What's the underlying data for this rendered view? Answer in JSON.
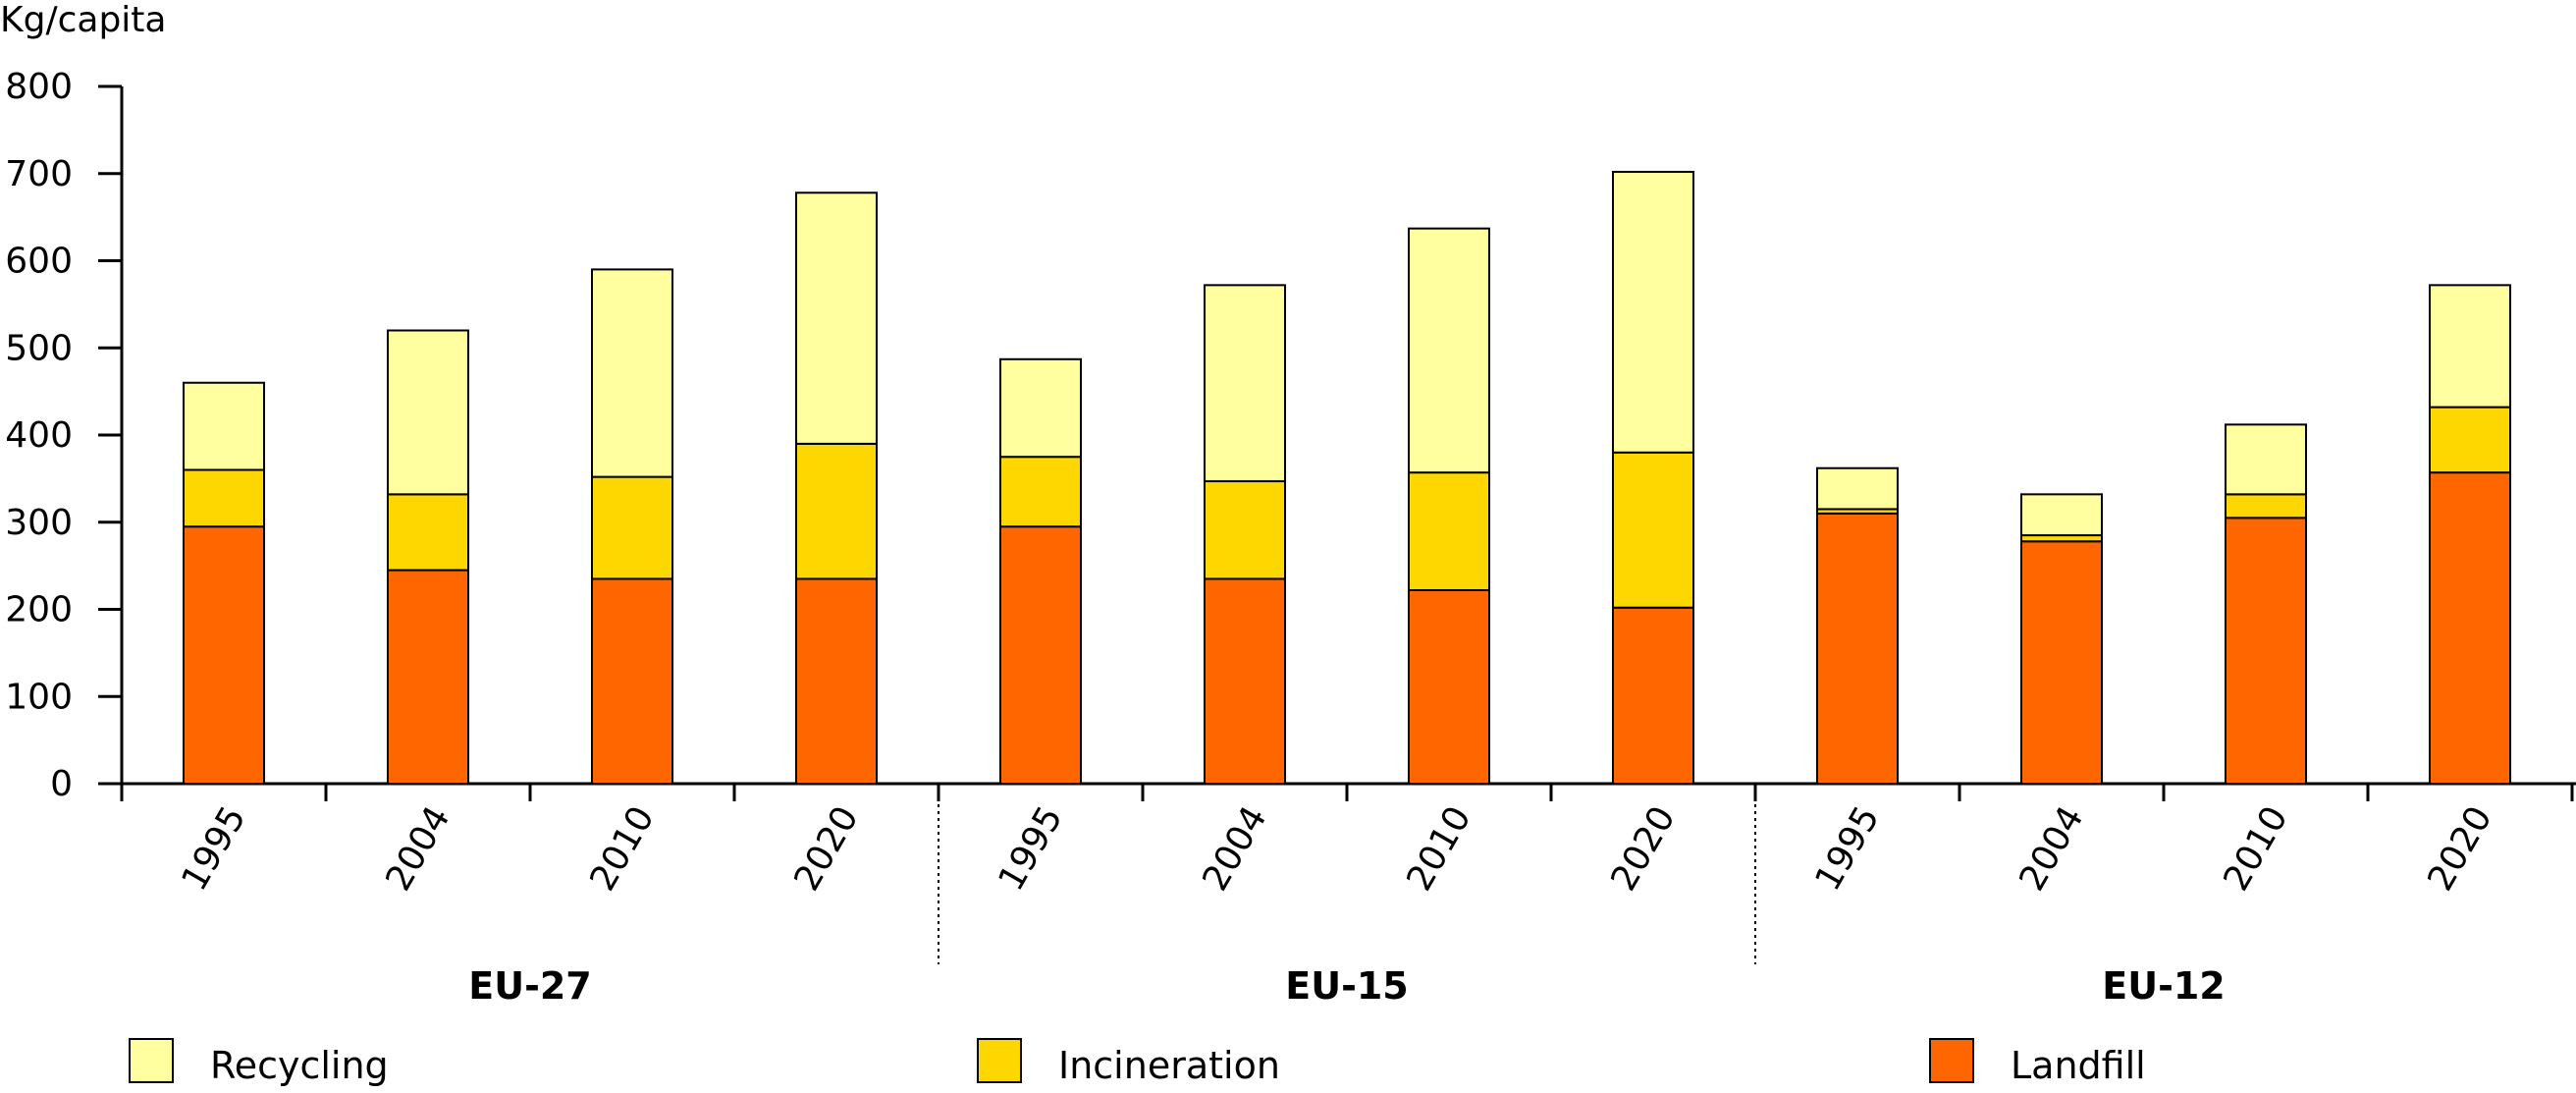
{
  "chart_data": {
    "type": "bar",
    "stacked": true,
    "ylabel": "Kg/capita",
    "ylim": [
      0,
      800
    ],
    "yticks": [
      0,
      100,
      200,
      300,
      400,
      500,
      600,
      700,
      800
    ],
    "grid": false,
    "legend_position": "bottom",
    "groups": [
      {
        "name": "EU-27",
        "categories": [
          "1995",
          "2004",
          "2010",
          "2020"
        ]
      },
      {
        "name": "EU-15",
        "categories": [
          "1995",
          "2004",
          "2010",
          "2020"
        ]
      },
      {
        "name": "EU-12",
        "categories": [
          "1995",
          "2004",
          "2010",
          "2020"
        ]
      }
    ],
    "series": [
      {
        "name": "Landfill",
        "color": "#ff6600",
        "values": [
          295,
          245,
          235,
          235,
          295,
          235,
          222,
          202,
          310,
          278,
          305,
          357
        ]
      },
      {
        "name": "Incineration",
        "color": "#ffd700",
        "values": [
          65,
          87,
          117,
          155,
          80,
          112,
          135,
          178,
          5,
          7,
          27,
          75
        ]
      },
      {
        "name": "Recycling",
        "color": "#ffffa0",
        "values": [
          100,
          188,
          238,
          288,
          112,
          225,
          280,
          322,
          47,
          47,
          80,
          140
        ]
      }
    ],
    "legend_order": [
      "Recycling",
      "Incineration",
      "Landfill"
    ]
  }
}
